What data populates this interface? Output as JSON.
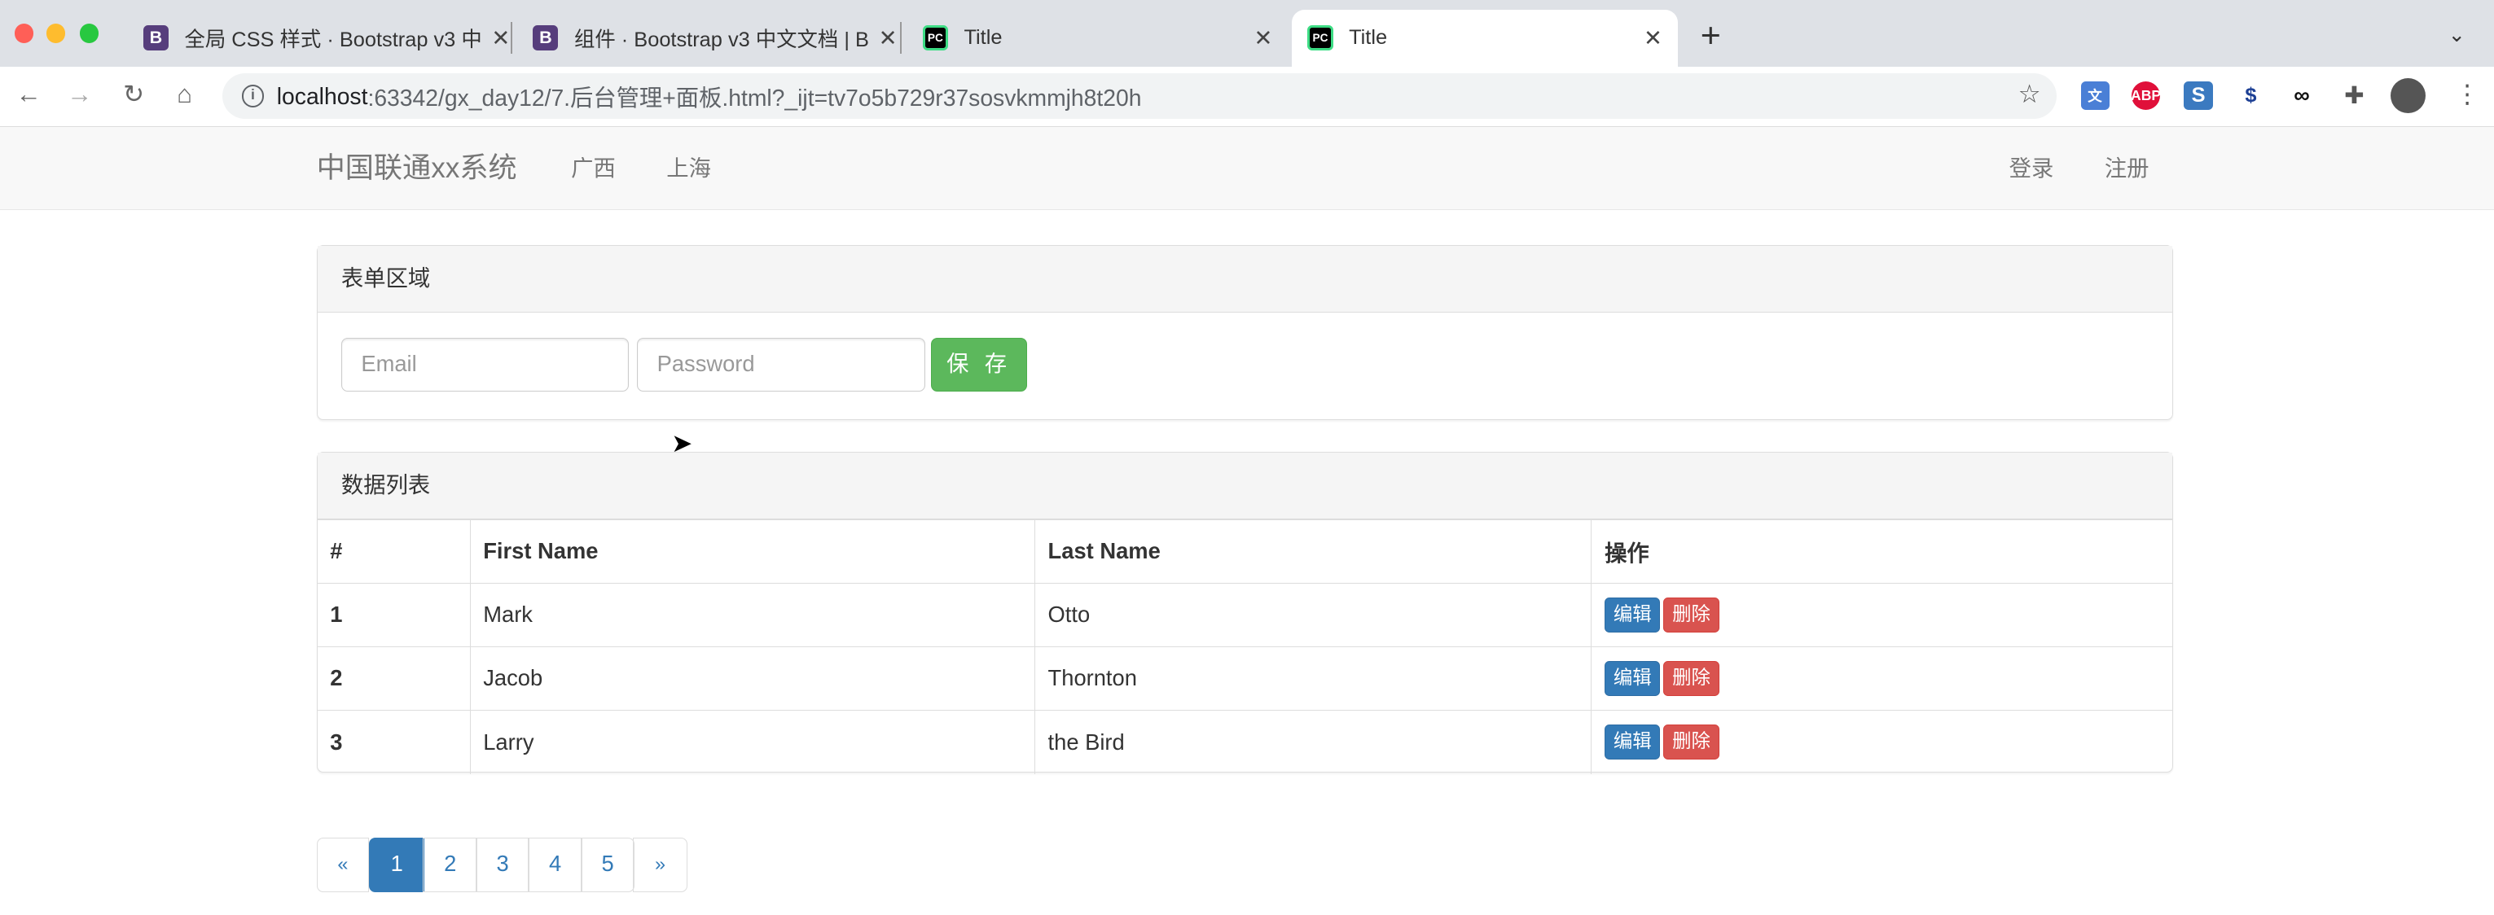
{
  "browser": {
    "tabs": [
      {
        "title": "全局 CSS 样式 · Bootstrap v3 中",
        "favicon": "bootstrap-icon",
        "active": false
      },
      {
        "title": "组件 · Bootstrap v3 中文文档 | B",
        "favicon": "bootstrap-icon",
        "active": false
      },
      {
        "title": "Title",
        "favicon": "pycharm-icon",
        "active": false
      },
      {
        "title": "Title",
        "favicon": "pycharm-icon",
        "active": true
      }
    ],
    "url_host": "localhost",
    "url_rest": ":63342/gx_day12/7.后台管理+面板.html?_ijt=tv7o5b729r37sosvkmmjh8t20h",
    "extensions": [
      "translate-icon",
      "adblock-icon",
      "s-icon",
      "dollar-icon",
      "sync-icon",
      "puzzle-icon"
    ]
  },
  "navbar": {
    "brand": "中国联通xx系统",
    "links": [
      "广西",
      "上海"
    ],
    "right": [
      "登录",
      "注册"
    ]
  },
  "form_panel": {
    "title": "表单区域",
    "email_placeholder": "Email",
    "password_placeholder": "Password",
    "save_label": "保 存",
    "save_color": "#5cb85c"
  },
  "list_panel": {
    "title": "数据列表",
    "columns": [
      "#",
      "First Name",
      "Last Name",
      "操作"
    ],
    "rows": [
      {
        "id": "1",
        "first": "Mark",
        "last": "Otto"
      },
      {
        "id": "2",
        "first": "Jacob",
        "last": "Thornton"
      },
      {
        "id": "3",
        "first": "Larry",
        "last": "the Bird"
      }
    ],
    "edit_label": "编辑",
    "delete_label": "删除"
  },
  "pagination": {
    "prev": "«",
    "pages": [
      "1",
      "2",
      "3",
      "4",
      "5"
    ],
    "next": "»",
    "active": "1"
  },
  "colors": {
    "primary": "#337ab7",
    "danger": "#d9534f",
    "success": "#5cb85c"
  }
}
